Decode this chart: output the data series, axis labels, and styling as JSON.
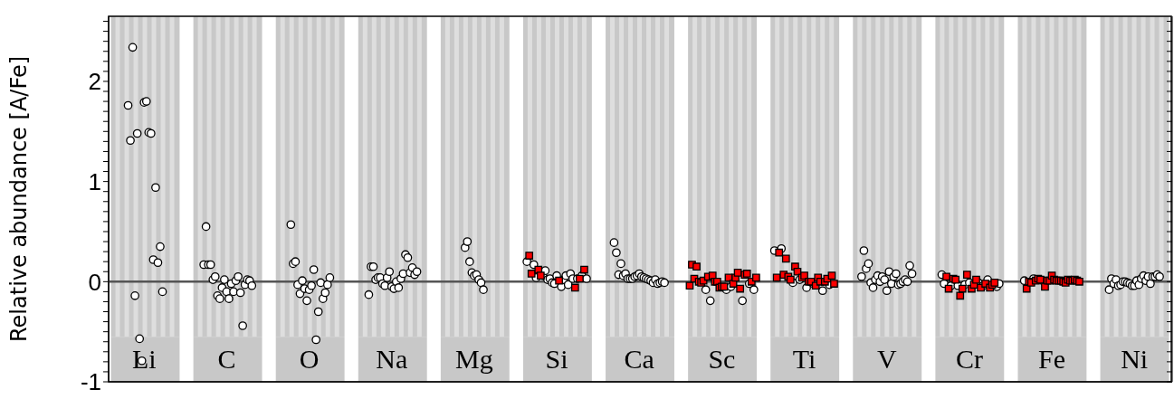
{
  "chart_data": {
    "type": "scatter",
    "ylabel": "Relative abundance [A/Fe]",
    "ylim": [
      -1,
      2.65
    ],
    "yticks": [
      -1,
      {
        "value": -0.9,
        "label": null
      },
      {
        "value": -0.8,
        "label": null
      },
      {
        "value": -0.7,
        "label": null
      },
      {
        "value": -0.6,
        "label": null
      },
      {
        "value": -0.5,
        "label": null
      },
      {
        "value": -0.4,
        "label": null
      },
      {
        "value": -0.3,
        "label": null
      },
      {
        "value": -0.2,
        "label": null
      },
      {
        "value": -0.1,
        "label": null
      },
      0,
      {
        "value": 0.1,
        "label": null
      },
      {
        "value": 0.2,
        "label": null
      },
      {
        "value": 0.3,
        "label": null
      },
      {
        "value": 0.4,
        "label": null
      },
      {
        "value": 0.5,
        "label": null
      },
      {
        "value": 0.6,
        "label": null
      },
      {
        "value": 0.7,
        "label": null
      },
      {
        "value": 0.8,
        "label": null
      },
      {
        "value": 0.9,
        "label": null
      },
      1,
      {
        "value": 1.1,
        "label": null
      },
      {
        "value": 1.2,
        "label": null
      },
      {
        "value": 1.3,
        "label": null
      },
      {
        "value": 1.4,
        "label": null
      },
      {
        "value": 1.5,
        "label": null
      },
      {
        "value": 1.6,
        "label": null
      },
      {
        "value": 1.7,
        "label": null
      },
      {
        "value": 1.8,
        "label": null
      },
      {
        "value": 1.9,
        "label": null
      },
      2,
      {
        "value": 2.1,
        "label": null
      },
      {
        "value": 2.2,
        "label": null
      },
      {
        "value": 2.3,
        "label": null
      },
      {
        "value": 2.4,
        "label": null
      },
      {
        "value": 2.5,
        "label": null
      },
      {
        "value": 2.6,
        "label": null
      }
    ],
    "ref_lines": [
      {
        "axis": "y",
        "value": 0,
        "color": "#555555"
      }
    ],
    "categories": [
      null,
      null,
      null,
      null,
      null,
      null,
      null,
      null,
      null,
      null,
      null,
      null,
      null,
      null,
      null,
      "Li",
      null,
      null,
      null,
      null,
      null,
      null,
      null,
      null,
      null,
      null,
      null,
      null,
      null,
      null,
      null,
      null,
      null,
      null,
      null,
      null,
      null,
      null,
      null,
      null,
      null,
      null,
      null,
      null,
      null,
      null,
      null,
      null,
      null,
      null,
      null,
      "C",
      null,
      null,
      null,
      null,
      null,
      null,
      null,
      null,
      null,
      null,
      null,
      null,
      null,
      null,
      null,
      null,
      null,
      null,
      null,
      null,
      null,
      null,
      null,
      null,
      null,
      null,
      null,
      null,
      null,
      null,
      null,
      null,
      null,
      null,
      null,
      "O",
      null,
      null,
      null,
      null,
      null,
      null,
      null,
      null,
      null,
      null,
      null,
      null,
      null,
      null,
      null,
      null,
      null,
      null,
      null,
      null,
      null,
      null,
      null,
      null,
      null,
      null,
      null,
      null,
      null,
      null,
      null,
      null,
      null,
      null,
      null,
      "Na",
      null,
      null,
      null,
      null,
      null,
      null,
      null,
      null,
      null,
      null,
      null,
      null,
      null,
      null,
      null,
      null,
      null,
      null,
      null,
      null,
      null,
      null,
      null,
      null,
      null,
      null,
      null,
      null,
      null,
      null,
      null,
      null,
      null,
      null,
      null,
      "Mg",
      null,
      null,
      null,
      null,
      null,
      null,
      null,
      null,
      null,
      null,
      null,
      null,
      null,
      null,
      null,
      null,
      null,
      null,
      null,
      null,
      null,
      null,
      null,
      null,
      null,
      null,
      null,
      null,
      null,
      null,
      null,
      null,
      null,
      null,
      null,
      "Si",
      null,
      null,
      null,
      null,
      null,
      null,
      null,
      null,
      null,
      null,
      null,
      null,
      null,
      null,
      null,
      null,
      null,
      null,
      null,
      null,
      null,
      null,
      null,
      null,
      null,
      null,
      null,
      null,
      null,
      null,
      null,
      null,
      null,
      null,
      null,
      "Ca",
      null,
      null,
      null,
      null,
      null,
      null,
      null,
      null,
      null,
      null,
      null,
      null,
      null,
      null,
      null,
      null,
      null,
      null,
      null,
      null,
      null,
      null,
      null,
      null,
      null,
      null,
      null,
      null,
      null,
      null,
      null,
      null,
      null,
      null,
      null,
      "Sc",
      null,
      null,
      null,
      null,
      null,
      null,
      null,
      null,
      null,
      null,
      null,
      null,
      null,
      null,
      null,
      null,
      null,
      null,
      null,
      null,
      null,
      null,
      null,
      null,
      null,
      null,
      null,
      null,
      null,
      null,
      null,
      null,
      null,
      null,
      null,
      "Ti",
      null,
      null,
      null,
      null,
      null,
      null,
      null,
      null,
      null,
      null,
      null,
      null,
      null,
      null,
      null,
      null,
      null,
      null,
      null,
      null,
      null,
      null,
      null,
      null,
      null,
      null,
      null,
      null,
      null,
      null,
      null,
      null,
      null,
      null,
      null,
      "V",
      null,
      null,
      null,
      null,
      null,
      null,
      null,
      null,
      null,
      null,
      null,
      null,
      null,
      null,
      null,
      null,
      null,
      null,
      null,
      null,
      null,
      null,
      null,
      null,
      null,
      null,
      null,
      null,
      null,
      null,
      null,
      null,
      null,
      null,
      null,
      "Cr",
      null,
      null,
      null,
      null,
      null,
      null,
      null,
      null,
      null,
      null,
      null,
      null,
      null,
      null,
      null,
      null,
      null,
      null,
      null,
      null,
      null,
      null,
      null,
      null,
      null,
      null,
      null,
      null,
      null,
      null,
      null,
      null,
      null,
      null,
      null,
      "Fe",
      null,
      null,
      null,
      null,
      null,
      null,
      null,
      null,
      null,
      null,
      null,
      null,
      null,
      null,
      null,
      null,
      null,
      null,
      null,
      null,
      null,
      null,
      null,
      null,
      null,
      null,
      null,
      null,
      null,
      null,
      null,
      null,
      null,
      null,
      null,
      "Ni",
      null,
      null,
      null,
      null,
      null,
      null,
      null,
      null,
      null,
      null,
      null,
      null,
      null,
      null,
      null,
      null
    ],
    "series": [
      {
        "color": "#ffffff",
        "marker": "circle",
        "values": [
          null,
          null,
          null,
          null,
          null,
          null,
          null,
          null,
          1.76,
          1.41,
          2.34,
          -0.14,
          1.48,
          -0.57,
          -0.79,
          1.79,
          1.8,
          1.49,
          1.48,
          0.22,
          0.94,
          0.19,
          0.35,
          -0.1,
          null,
          null,
          null,
          null,
          null,
          null,
          null,
          null,
          null,
          null,
          null,
          null,
          null,
          null,
          null,
          null,
          null,
          0.17,
          0.55,
          0.17,
          0.17,
          0.02,
          0.05,
          -0.14,
          -0.17,
          -0.06,
          0.02,
          -0.1,
          -0.17,
          -0.02,
          -0.1,
          0.01,
          0.05,
          -0.11,
          -0.44,
          -0.03,
          0.02,
          0.01,
          -0.04,
          null,
          null,
          null,
          null,
          null,
          null,
          null,
          null,
          null,
          null,
          null,
          null,
          null,
          null,
          null,
          null,
          0.57,
          0.18,
          0.2,
          -0.03,
          -0.12,
          0.01,
          -0.07,
          -0.19,
          -0.08,
          -0.04,
          0.12,
          -0.58,
          -0.3,
          -0.01,
          -0.17,
          -0.11,
          -0.03,
          0.04,
          null,
          null,
          null,
          null,
          null,
          null,
          null,
          null,
          null,
          null,
          null,
          null,
          null,
          null,
          null,
          null,
          -0.13,
          0.15,
          0.15,
          0.02,
          0.04,
          0.04,
          -0.02,
          -0.04,
          0.04,
          0.1,
          -0.05,
          -0.07,
          0.0,
          -0.06,
          0.03,
          0.08,
          0.27,
          0.24,
          0.09,
          0.14,
          0.07,
          0.1,
          null,
          null,
          null,
          null,
          null,
          null,
          null,
          null,
          null,
          null,
          null,
          null,
          null,
          null,
          null,
          null,
          null,
          null,
          null,
          null,
          0.34,
          0.4,
          0.2,
          0.09,
          0.06,
          0.07,
          0.02,
          -0.01,
          -0.08,
          null,
          null,
          null,
          null,
          null,
          null,
          null,
          null,
          null,
          null,
          null,
          null,
          null,
          null,
          null,
          null,
          null,
          null,
          0.2,
          null,
          null,
          0.17,
          0.04,
          null,
          null,
          0.06,
          0.11,
          0.02,
          0.03,
          -0.01,
          -0.02,
          0.06,
          null,
          -0.05,
          0.02,
          0.06,
          -0.03,
          0.08,
          0.03,
          null,
          0.03,
          null,
          0.06,
          null,
          0.03,
          null,
          null,
          null,
          null,
          null,
          null,
          null,
          null,
          null,
          null,
          null,
          0.39,
          0.29,
          0.07,
          0.18,
          0.06,
          0.08,
          0.03,
          0.03,
          0.03,
          0.05,
          0.06,
          0.08,
          0.05,
          0.04,
          0.03,
          0.02,
          0.01,
          -0.01,
          0.02,
          -0.02,
          -0.01,
          0.0,
          -0.01,
          null,
          null,
          null,
          null,
          null,
          null,
          null,
          null,
          null,
          null,
          null,
          null,
          null,
          null,
          null,
          null,
          null,
          -0.08,
          null,
          -0.19,
          null,
          null,
          null,
          null,
          null,
          null,
          -0.08,
          null,
          -0.05,
          null,
          null,
          null,
          null,
          -0.19,
          null,
          null,
          -0.02,
          null,
          -0.08,
          null,
          null,
          null,
          null,
          null,
          null,
          null,
          null,
          0.31,
          null,
          null,
          0.33,
          null,
          null,
          null,
          null,
          -0.01,
          null,
          null,
          0.02,
          null,
          null,
          -0.06,
          null,
          null,
          -0.02,
          null,
          null,
          null,
          -0.09,
          null,
          null,
          -0.03,
          null,
          null,
          null,
          null,
          null,
          null,
          null,
          null,
          null,
          null,
          null,
          null,
          null,
          0.05,
          0.31,
          0.13,
          0.18,
          -0.01,
          -0.06,
          0.02,
          0.06,
          0.0,
          0.05,
          0.02,
          -0.09,
          0.1,
          -0.02,
          0.05,
          0.08,
          -0.03,
          -0.02,
          0.0,
          0.02,
          0.0,
          0.16,
          0.08,
          null,
          null,
          null,
          null,
          null,
          null,
          null,
          null,
          null,
          null,
          null,
          null,
          0.07,
          -0.02,
          null,
          null,
          -0.04,
          null,
          null,
          -0.04,
          null,
          null,
          -0.03,
          null,
          -0.01,
          null,
          null,
          null,
          -0.01,
          null,
          -0.04,
          null,
          0.02,
          null,
          null,
          null,
          -0.05,
          -0.02,
          null,
          null,
          null,
          null,
          null,
          null,
          null,
          null,
          null,
          null,
          0.01,
          null,
          null,
          null,
          0.03,
          null,
          null,
          null,
          0.01,
          null,
          null,
          null,
          null,
          null,
          null,
          null,
          null,
          null,
          null,
          null,
          null,
          null,
          null,
          null,
          null,
          null,
          null,
          null,
          null,
          null,
          null,
          null,
          null,
          null,
          null,
          null,
          null,
          -0.08,
          0.03,
          -0.02,
          0.02,
          -0.04,
          -0.03,
          0.0,
          0.0,
          -0.01,
          -0.02,
          -0.04,
          -0.04,
          0.01,
          -0.03,
          0.03,
          0.06,
          0.01,
          0.05,
          -0.02,
          0.05,
          0.05,
          0.07,
          0.05,
          null,
          null,
          null,
          null,
          null
        ]
      },
      {
        "color": "#ff0000",
        "marker": "square",
        "values": [
          null,
          null,
          null,
          null,
          null,
          null,
          null,
          null,
          null,
          null,
          null,
          null,
          null,
          null,
          null,
          null,
          null,
          null,
          null,
          null,
          null,
          null,
          null,
          null,
          null,
          null,
          null,
          null,
          null,
          null,
          null,
          null,
          null,
          null,
          null,
          null,
          null,
          null,
          null,
          null,
          null,
          null,
          null,
          null,
          null,
          null,
          null,
          null,
          null,
          null,
          null,
          null,
          null,
          null,
          null,
          null,
          null,
          null,
          null,
          null,
          null,
          null,
          null,
          null,
          null,
          null,
          null,
          null,
          null,
          null,
          null,
          null,
          null,
          null,
          null,
          null,
          null,
          null,
          null,
          null,
          null,
          null,
          null,
          null,
          null,
          null,
          null,
          null,
          null,
          null,
          null,
          null,
          null,
          null,
          null,
          null,
          null,
          null,
          null,
          null,
          null,
          null,
          null,
          null,
          null,
          null,
          null,
          null,
          null,
          null,
          null,
          null,
          null,
          null,
          null,
          null,
          null,
          null,
          null,
          null,
          null,
          null,
          null,
          null,
          null,
          null,
          null,
          null,
          null,
          null,
          null,
          null,
          null,
          null,
          null,
          null,
          null,
          null,
          null,
          null,
          null,
          null,
          null,
          null,
          null,
          null,
          null,
          null,
          null,
          null,
          null,
          null,
          null,
          null,
          null,
          null,
          null,
          null,
          null,
          null,
          null,
          null,
          null,
          null,
          null,
          null,
          null,
          null,
          null,
          null,
          null,
          null,
          null,
          null,
          null,
          null,
          null,
          null,
          null,
          null,
          null,
          null,
          null,
          0.26,
          0.08,
          null,
          null,
          0.12,
          0.06,
          null,
          null,
          null,
          null,
          null,
          null,
          null,
          0.01,
          null,
          null,
          null,
          null,
          null,
          null,
          -0.06,
          null,
          0.03,
          null,
          0.12,
          null,
          null,
          null,
          null,
          null,
          null,
          null,
          null,
          null,
          null,
          null,
          null,
          null,
          null,
          null,
          null,
          null,
          null,
          null,
          null,
          null,
          null,
          null,
          null,
          null,
          null,
          null,
          null,
          null,
          null,
          null,
          null,
          null,
          null,
          null,
          null,
          null,
          null,
          null,
          null,
          null,
          null,
          null,
          null,
          null,
          -0.04,
          0.17,
          0.03,
          0.15,
          0.0,
          -0.01,
          0.01,
          null,
          0.05,
          null,
          0.06,
          0.0,
          0.0,
          -0.06,
          -0.05,
          -0.05,
          null,
          0.04,
          null,
          -0.02,
          0.04,
          0.09,
          -0.07,
          null,
          0.07,
          0.08,
          null,
          0.0,
          null,
          0.04,
          null,
          null,
          null,
          null,
          null,
          null,
          null,
          null,
          0.04,
          0.29,
          null,
          0.07,
          0.23,
          0.05,
          0.02,
          null,
          0.15,
          0.1,
          null,
          0.04,
          0.06,
          null,
          0.0,
          0.0,
          null,
          -0.04,
          0.04,
          0.0,
          null,
          0.0,
          0.03,
          null,
          0.06,
          -0.02,
          null,
          null,
          null,
          null,
          null,
          null,
          null,
          null,
          null,
          null,
          null,
          null,
          null,
          null,
          null,
          null,
          null,
          null,
          null,
          null,
          null,
          null,
          null,
          null,
          null,
          null,
          null,
          null,
          null,
          null,
          null,
          null,
          null,
          null,
          null,
          null,
          null,
          null,
          null,
          null,
          null,
          null,
          null,
          null,
          null,
          null,
          null,
          null,
          0.05,
          -0.07,
          null,
          0.03,
          0.02,
          null,
          -0.14,
          -0.07,
          null,
          0.07,
          null,
          -0.07,
          -0.03,
          0.02,
          null,
          -0.06,
          null,
          -0.02,
          null,
          -0.06,
          -0.03,
          -0.01,
          null,
          null,
          null,
          null,
          null,
          null,
          null,
          null,
          null,
          null,
          null,
          null,
          null,
          -0.07,
          0.0,
          -0.01,
          null,
          0.01,
          0.03,
          0.02,
          null,
          -0.05,
          0.01,
          0.01,
          0.06,
          0.02,
          0.01,
          0.01,
          0.01,
          0.0,
          -0.01,
          0.02,
          0.01,
          0.01,
          0.02,
          0.01,
          0.0,
          null,
          null,
          null,
          null,
          null,
          null,
          null,
          null,
          null,
          null,
          null,
          null,
          null,
          null,
          null,
          null,
          null,
          null,
          null,
          null,
          null,
          null,
          null,
          null,
          null,
          null,
          null,
          null,
          null,
          null,
          null,
          null,
          null,
          null,
          null,
          null,
          null,
          null,
          null,
          null
        ]
      }
    ]
  }
}
